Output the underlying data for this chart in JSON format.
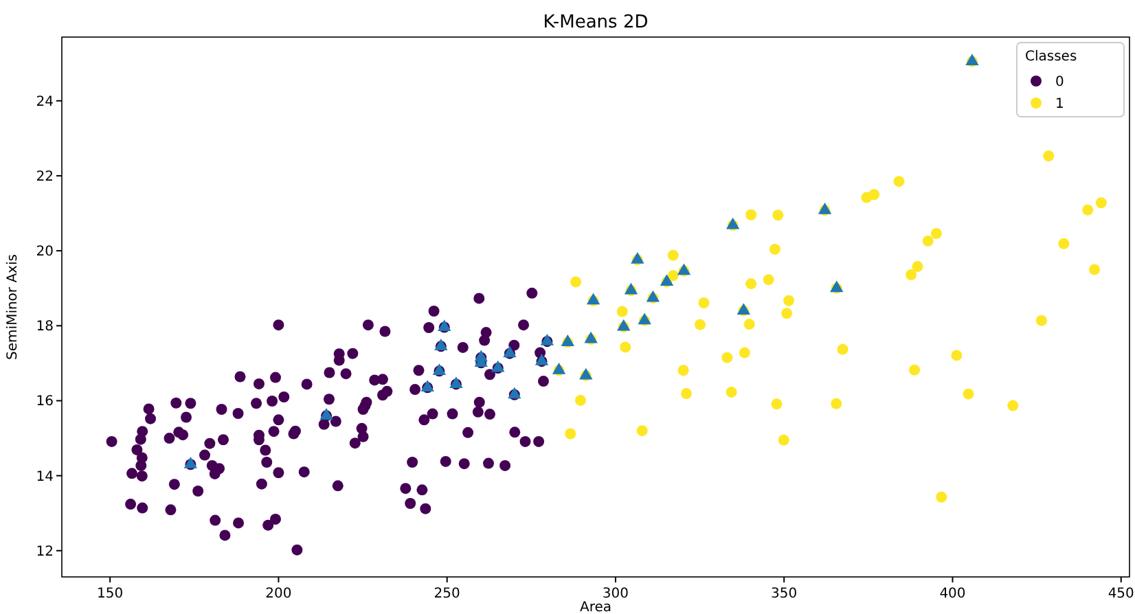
{
  "chart_data": {
    "type": "scatter",
    "title": "K-Means 2D",
    "xlabel": "Area",
    "ylabel": "SemiMinor Axis",
    "legend_title": "Classes",
    "legend": "top right",
    "grid": false,
    "xlim": [
      135.7,
      452.5
    ],
    "ylim": [
      11.3,
      25.7
    ],
    "xticks": [
      150,
      200,
      250,
      300,
      350,
      400,
      450
    ],
    "yticks": [
      12,
      14,
      16,
      18,
      20,
      22,
      24
    ],
    "series": [
      {
        "name": "0",
        "color": "#440154",
        "marker": "circle",
        "x": [
          150.5,
          156.1,
          156.5,
          158.0,
          159.1,
          159.6,
          159.5,
          159.2,
          159.5,
          159.6,
          161.5,
          162.0,
          167.6,
          168.0,
          169.1,
          169.6,
          170.4,
          171.6,
          172.6,
          173.9,
          176.1,
          178.1,
          179.6,
          180.3,
          181.1,
          181.2,
          182.4,
          183.1,
          183.6,
          184.1,
          188.0,
          188.1,
          188.6,
          193.4,
          194.2,
          194.2,
          194.2,
          195.0,
          196.1,
          196.5,
          196.9,
          198.1,
          198.6,
          199.1,
          199.1,
          200.0,
          200.0,
          200.0,
          201.6,
          204.5,
          205.0,
          205.5,
          207.6,
          208.4,
          213.5,
          215.0,
          215.1,
          217.0,
          217.6,
          218.0,
          218.0,
          220.0,
          222.0,
          222.7,
          224.7,
          225.1,
          225.1,
          225.7,
          226.1,
          226.6,
          228.5,
          230.9,
          230.9,
          231.6,
          232.2,
          237.7,
          239.1,
          239.7,
          240.5,
          241.6,
          242.6,
          243.2,
          243.6,
          244.6,
          245.7,
          246.1,
          249.6,
          251.6,
          254.7,
          255.1,
          256.2,
          259.5,
          259.6,
          259.2,
          261.1,
          261.6,
          262.7,
          262.3,
          262.7,
          267.2,
          269.9,
          270.1,
          272.7,
          273.2,
          277.2,
          277.6,
          278.6,
          275.2,
          173.9,
          214.2,
          244.2,
          247.7,
          248.2,
          249.2,
          252.7,
          260.1,
          260.1,
          265.1,
          268.6,
          270.0,
          278.1,
          279.7
        ],
        "values": [
          14.91,
          13.24,
          14.06,
          14.69,
          14.97,
          15.18,
          14.48,
          14.27,
          13.99,
          13.14,
          15.78,
          15.52,
          15.0,
          13.09,
          13.77,
          15.94,
          15.16,
          15.09,
          15.56,
          15.93,
          13.59,
          14.55,
          14.86,
          14.27,
          14.05,
          12.81,
          14.19,
          15.77,
          14.96,
          12.41,
          15.66,
          12.74,
          16.64,
          15.93,
          16.45,
          15.08,
          14.96,
          13.78,
          14.68,
          14.36,
          12.68,
          15.99,
          15.18,
          16.62,
          12.84,
          18.02,
          15.49,
          14.08,
          16.1,
          15.12,
          15.19,
          12.02,
          14.1,
          16.44,
          15.37,
          16.04,
          16.75,
          15.45,
          13.73,
          17.25,
          17.08,
          16.72,
          17.26,
          14.87,
          15.26,
          15.04,
          15.77,
          15.87,
          15.96,
          18.02,
          16.55,
          16.57,
          16.15,
          17.85,
          16.25,
          13.66,
          13.26,
          14.36,
          16.3,
          16.81,
          13.62,
          15.49,
          13.12,
          17.95,
          15.65,
          18.39,
          14.38,
          15.65,
          17.42,
          14.32,
          15.15,
          18.73,
          15.96,
          15.7,
          17.61,
          17.82,
          16.7,
          14.33,
          15.64,
          14.27,
          17.48,
          15.16,
          18.02,
          14.91,
          14.91,
          17.28,
          16.52,
          18.87,
          14.3,
          15.6,
          16.35,
          16.79,
          17.45,
          17.96,
          16.44,
          17.15,
          17.01,
          16.87,
          17.26,
          16.16,
          17.05,
          17.58
        ]
      },
      {
        "name": "1",
        "color": "#fde725",
        "marker": "circle",
        "x": [
          289.6,
          286.6,
          288.2,
          317.1,
          317.1,
          302.0,
          325.1,
          326.2,
          340.2,
          348.2,
          347.3,
          340.2,
          345.4,
          351.4,
          350.8,
          339.7,
          374.5,
          376.7,
          384.1,
          392.7,
          395.2,
          389.6,
          387.7,
          428.5,
          440.1,
          444.1,
          433.0,
          442.1,
          426.4,
          302.9,
          307.9,
          320.1,
          321.0,
          333.1,
          334.4,
          338.3,
          347.8,
          349.9,
          365.5,
          367.4,
          388.7,
          396.7,
          401.2,
          404.7,
          417.9,
          283.2,
          285.8,
          291.2,
          292.7,
          293.4,
          306.5,
          315.2,
          320.3,
          304.6,
          311.1,
          308.6,
          302.4,
          334.8,
          338.0,
          362.1,
          365.6,
          405.8
        ],
        "values": [
          16.01,
          15.12,
          19.17,
          19.88,
          19.34,
          18.38,
          18.03,
          18.61,
          20.96,
          20.95,
          20.04,
          19.12,
          19.23,
          18.67,
          18.33,
          18.04,
          21.42,
          21.5,
          21.85,
          20.26,
          20.46,
          19.58,
          19.36,
          22.53,
          21.09,
          21.28,
          20.19,
          19.5,
          18.14,
          17.43,
          15.2,
          16.81,
          16.19,
          17.15,
          16.23,
          17.28,
          15.91,
          14.95,
          15.92,
          17.37,
          16.82,
          13.43,
          17.21,
          16.18,
          15.87,
          16.81,
          17.56,
          16.67,
          17.64,
          18.67,
          19.76,
          19.17,
          19.46,
          18.94,
          18.74,
          18.14,
          17.97,
          20.68,
          18.4,
          21.08,
          19.0,
          25.05
        ]
      },
      {
        "color": "#1f77b4",
        "marker": "triangle",
        "x": [
          173.9,
          214.2,
          244.2,
          247.7,
          248.2,
          249.2,
          252.7,
          260.1,
          260.1,
          265.1,
          268.6,
          270.0,
          278.1,
          279.7,
          283.2,
          285.8,
          291.2,
          292.7,
          293.4,
          306.5,
          315.2,
          320.3,
          304.6,
          311.1,
          308.6,
          302.4,
          334.8,
          338.0,
          362.1,
          365.6,
          405.8
        ],
        "values": [
          14.3,
          15.6,
          16.35,
          16.79,
          17.45,
          17.96,
          16.44,
          17.15,
          17.01,
          16.87,
          17.26,
          16.16,
          17.05,
          17.58,
          16.81,
          17.56,
          16.67,
          17.64,
          18.67,
          19.76,
          19.17,
          19.46,
          18.94,
          18.74,
          18.14,
          17.97,
          20.68,
          18.4,
          21.08,
          19.0,
          25.05
        ]
      }
    ]
  }
}
